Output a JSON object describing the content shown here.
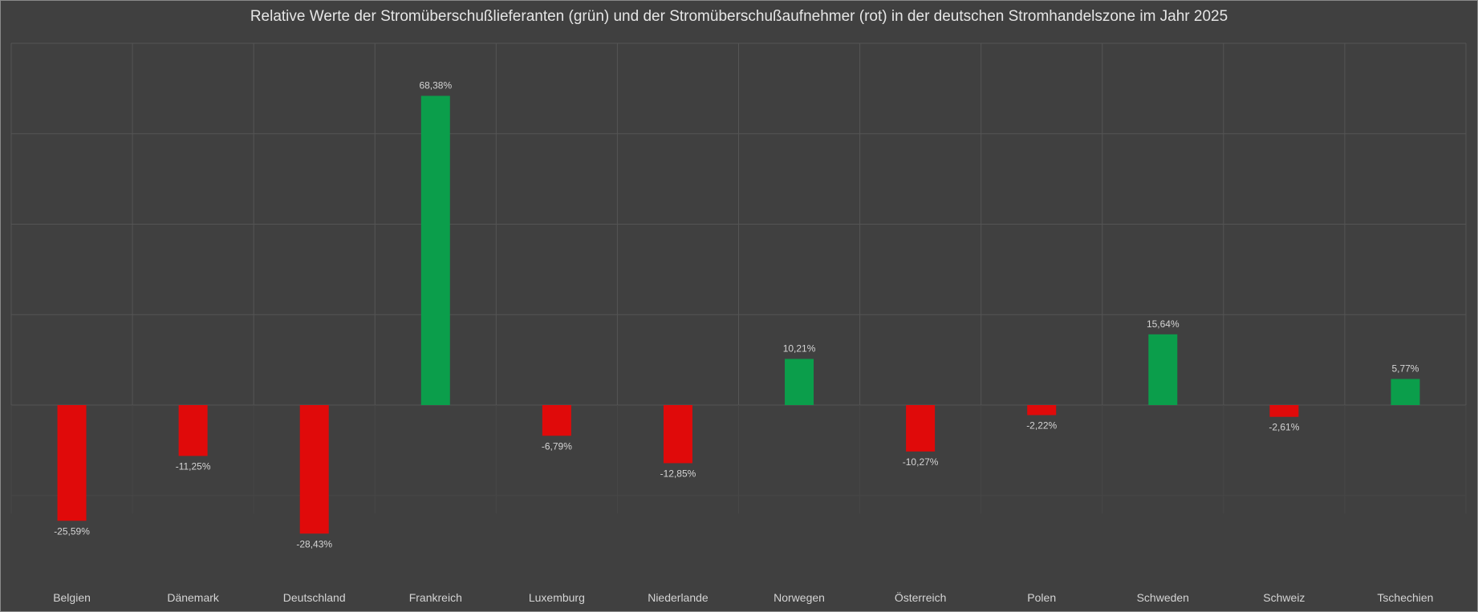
{
  "chart_data": {
    "type": "bar",
    "title": "Relative Werte der Stromüberschußlieferanten (grün) und der Stromüberschußaufnehmer (rot) in der deutschen Stromhandelszone  im Jahr 2025",
    "categories": [
      "Belgien",
      "Dänemark",
      "Deutschland",
      "Frankreich",
      "Luxemburg",
      "Niederlande",
      "Norwegen",
      "Österreich",
      "Polen",
      "Schweden",
      "Schweiz",
      "Tschechien"
    ],
    "values": [
      -25.59,
      -11.25,
      -28.43,
      68.38,
      -6.79,
      -12.85,
      10.21,
      -10.27,
      -2.22,
      15.64,
      -2.61,
      5.77
    ],
    "data_labels": [
      "-25,59%",
      "-11,25%",
      "-28,43%",
      "68,38%",
      "-6,79%",
      "-12,85%",
      "10,21%",
      "-10,27%",
      "-2,22%",
      "15,64%",
      "-2,61%",
      "5,77%"
    ],
    "xlabel": "",
    "ylabel": "",
    "ylim": [
      -24,
      80
    ],
    "grid": true,
    "y_axis_labels_shown": false,
    "colors": {
      "positive": "#0b9e4b",
      "negative": "#e00a0a",
      "background": "#404040",
      "grid": "#555555",
      "text": "#d4d4d4"
    }
  }
}
